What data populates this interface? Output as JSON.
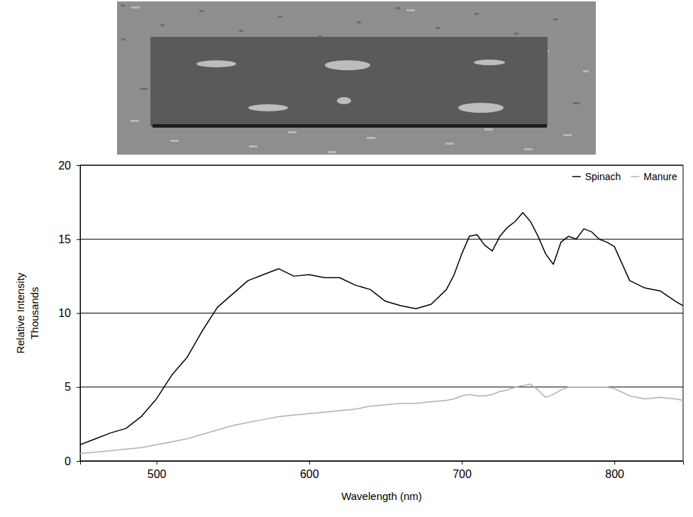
{
  "chart_data": {
    "type": "line",
    "xlabel": "Wavelength (nm)",
    "ylabel": [
      "Relative Intensity",
      "Thousands"
    ],
    "x": [
      450,
      460,
      470,
      480,
      490,
      500,
      510,
      520,
      530,
      540,
      550,
      560,
      570,
      580,
      590,
      600,
      610,
      620,
      630,
      640,
      650,
      660,
      670,
      680,
      690,
      695,
      700,
      705,
      710,
      715,
      720,
      725,
      730,
      735,
      740,
      745,
      750,
      755,
      760,
      765,
      770,
      775,
      780,
      785,
      790,
      795,
      800,
      810,
      820,
      830,
      840,
      845
    ],
    "series": [
      {
        "name": "Spinach",
        "color": "#000000",
        "values": [
          1.1,
          1.5,
          1.9,
          2.2,
          3.0,
          4.2,
          5.8,
          7.0,
          8.8,
          10.4,
          11.3,
          12.2,
          12.6,
          13.0,
          12.5,
          12.6,
          12.4,
          12.4,
          11.9,
          11.6,
          10.8,
          10.5,
          10.3,
          10.6,
          11.6,
          12.6,
          14.0,
          15.2,
          15.3,
          14.6,
          14.2,
          15.2,
          15.8,
          16.2,
          16.8,
          16.2,
          15.2,
          14.0,
          13.3,
          14.8,
          15.2,
          15.0,
          15.7,
          15.5,
          15.0,
          14.8,
          14.5,
          12.2,
          11.7,
          11.5,
          10.8,
          10.5
        ]
      },
      {
        "name": "Manure",
        "color": "#b0b0b0",
        "values": [
          0.5,
          0.6,
          0.7,
          0.8,
          0.9,
          1.1,
          1.3,
          1.5,
          1.8,
          2.1,
          2.4,
          2.6,
          2.8,
          3.0,
          3.1,
          3.2,
          3.3,
          3.4,
          3.5,
          3.7,
          3.8,
          3.9,
          3.9,
          4.0,
          4.1,
          4.2,
          4.4,
          4.5,
          4.4,
          4.4,
          4.5,
          4.7,
          4.8,
          5.0,
          5.1,
          5.2,
          4.8,
          4.3,
          4.5,
          4.8,
          5.0,
          5.0,
          5.0,
          5.0,
          5.0,
          5.0,
          4.9,
          4.4,
          4.2,
          4.3,
          4.2,
          4.1
        ]
      }
    ],
    "xlim": [
      450,
      845
    ],
    "xticks": [
      500,
      600,
      700,
      800
    ],
    "ylim": [
      0,
      20
    ],
    "yticks": [
      0,
      5,
      10,
      15,
      20
    ],
    "grid": true,
    "legend": "upper right"
  }
}
